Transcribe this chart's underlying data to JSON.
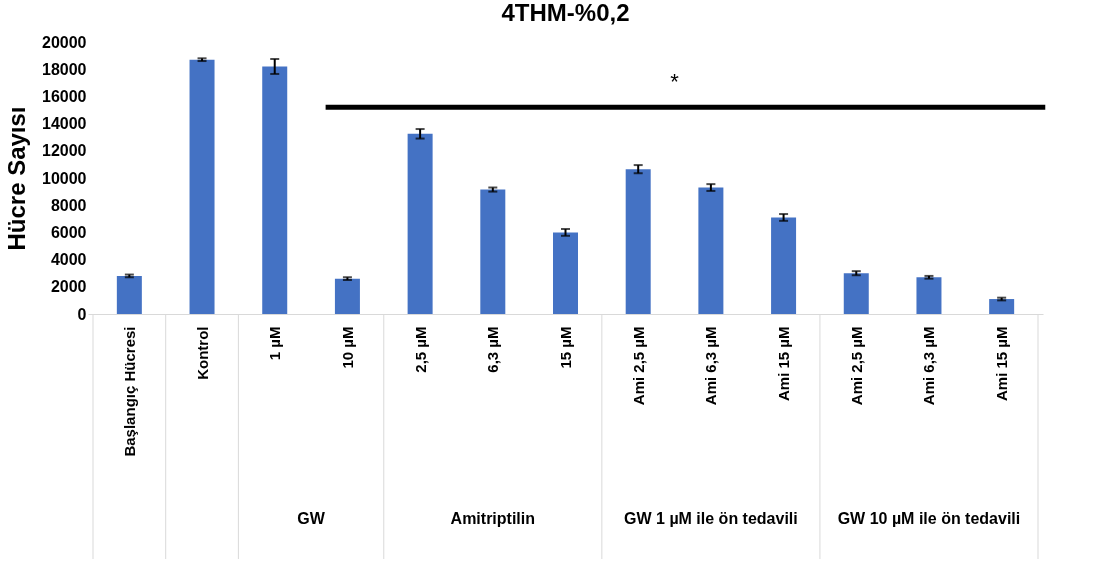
{
  "chart_data": {
    "type": "bar",
    "title": "4THM-%0,2",
    "ylabel": "Hücre Sayısı",
    "categories": [
      "Başlangıç Hücresi",
      "Kontrol",
      "1 µM",
      "10 µM",
      "2,5 µM",
      "6,3 µM",
      "15 µM",
      "Ami 2,5 µM",
      "Ami 6,3 µM",
      "Ami 15 µM",
      "Ami 2,5 µM",
      "Ami 6,3 µM",
      "Ami 15 µM"
    ],
    "values": [
      2800,
      18700,
      18200,
      2600,
      13250,
      9150,
      6000,
      10650,
      9300,
      7100,
      3000,
      2700,
      1100
    ],
    "errors": [
      100,
      100,
      550,
      100,
      350,
      150,
      250,
      300,
      250,
      250,
      150,
      100,
      100
    ],
    "color": "#4472c4",
    "ylim": [
      0,
      20000
    ],
    "yticks": [
      0,
      2000,
      4000,
      6000,
      8000,
      10000,
      12000,
      14000,
      16000,
      18000,
      20000
    ],
    "grid": false,
    "annotations": [
      "*",
      "GW",
      "Amitriptilin",
      "GW 1 µM ile ön tedavili",
      "GW 10 µM ile ön tedavili"
    ]
  }
}
